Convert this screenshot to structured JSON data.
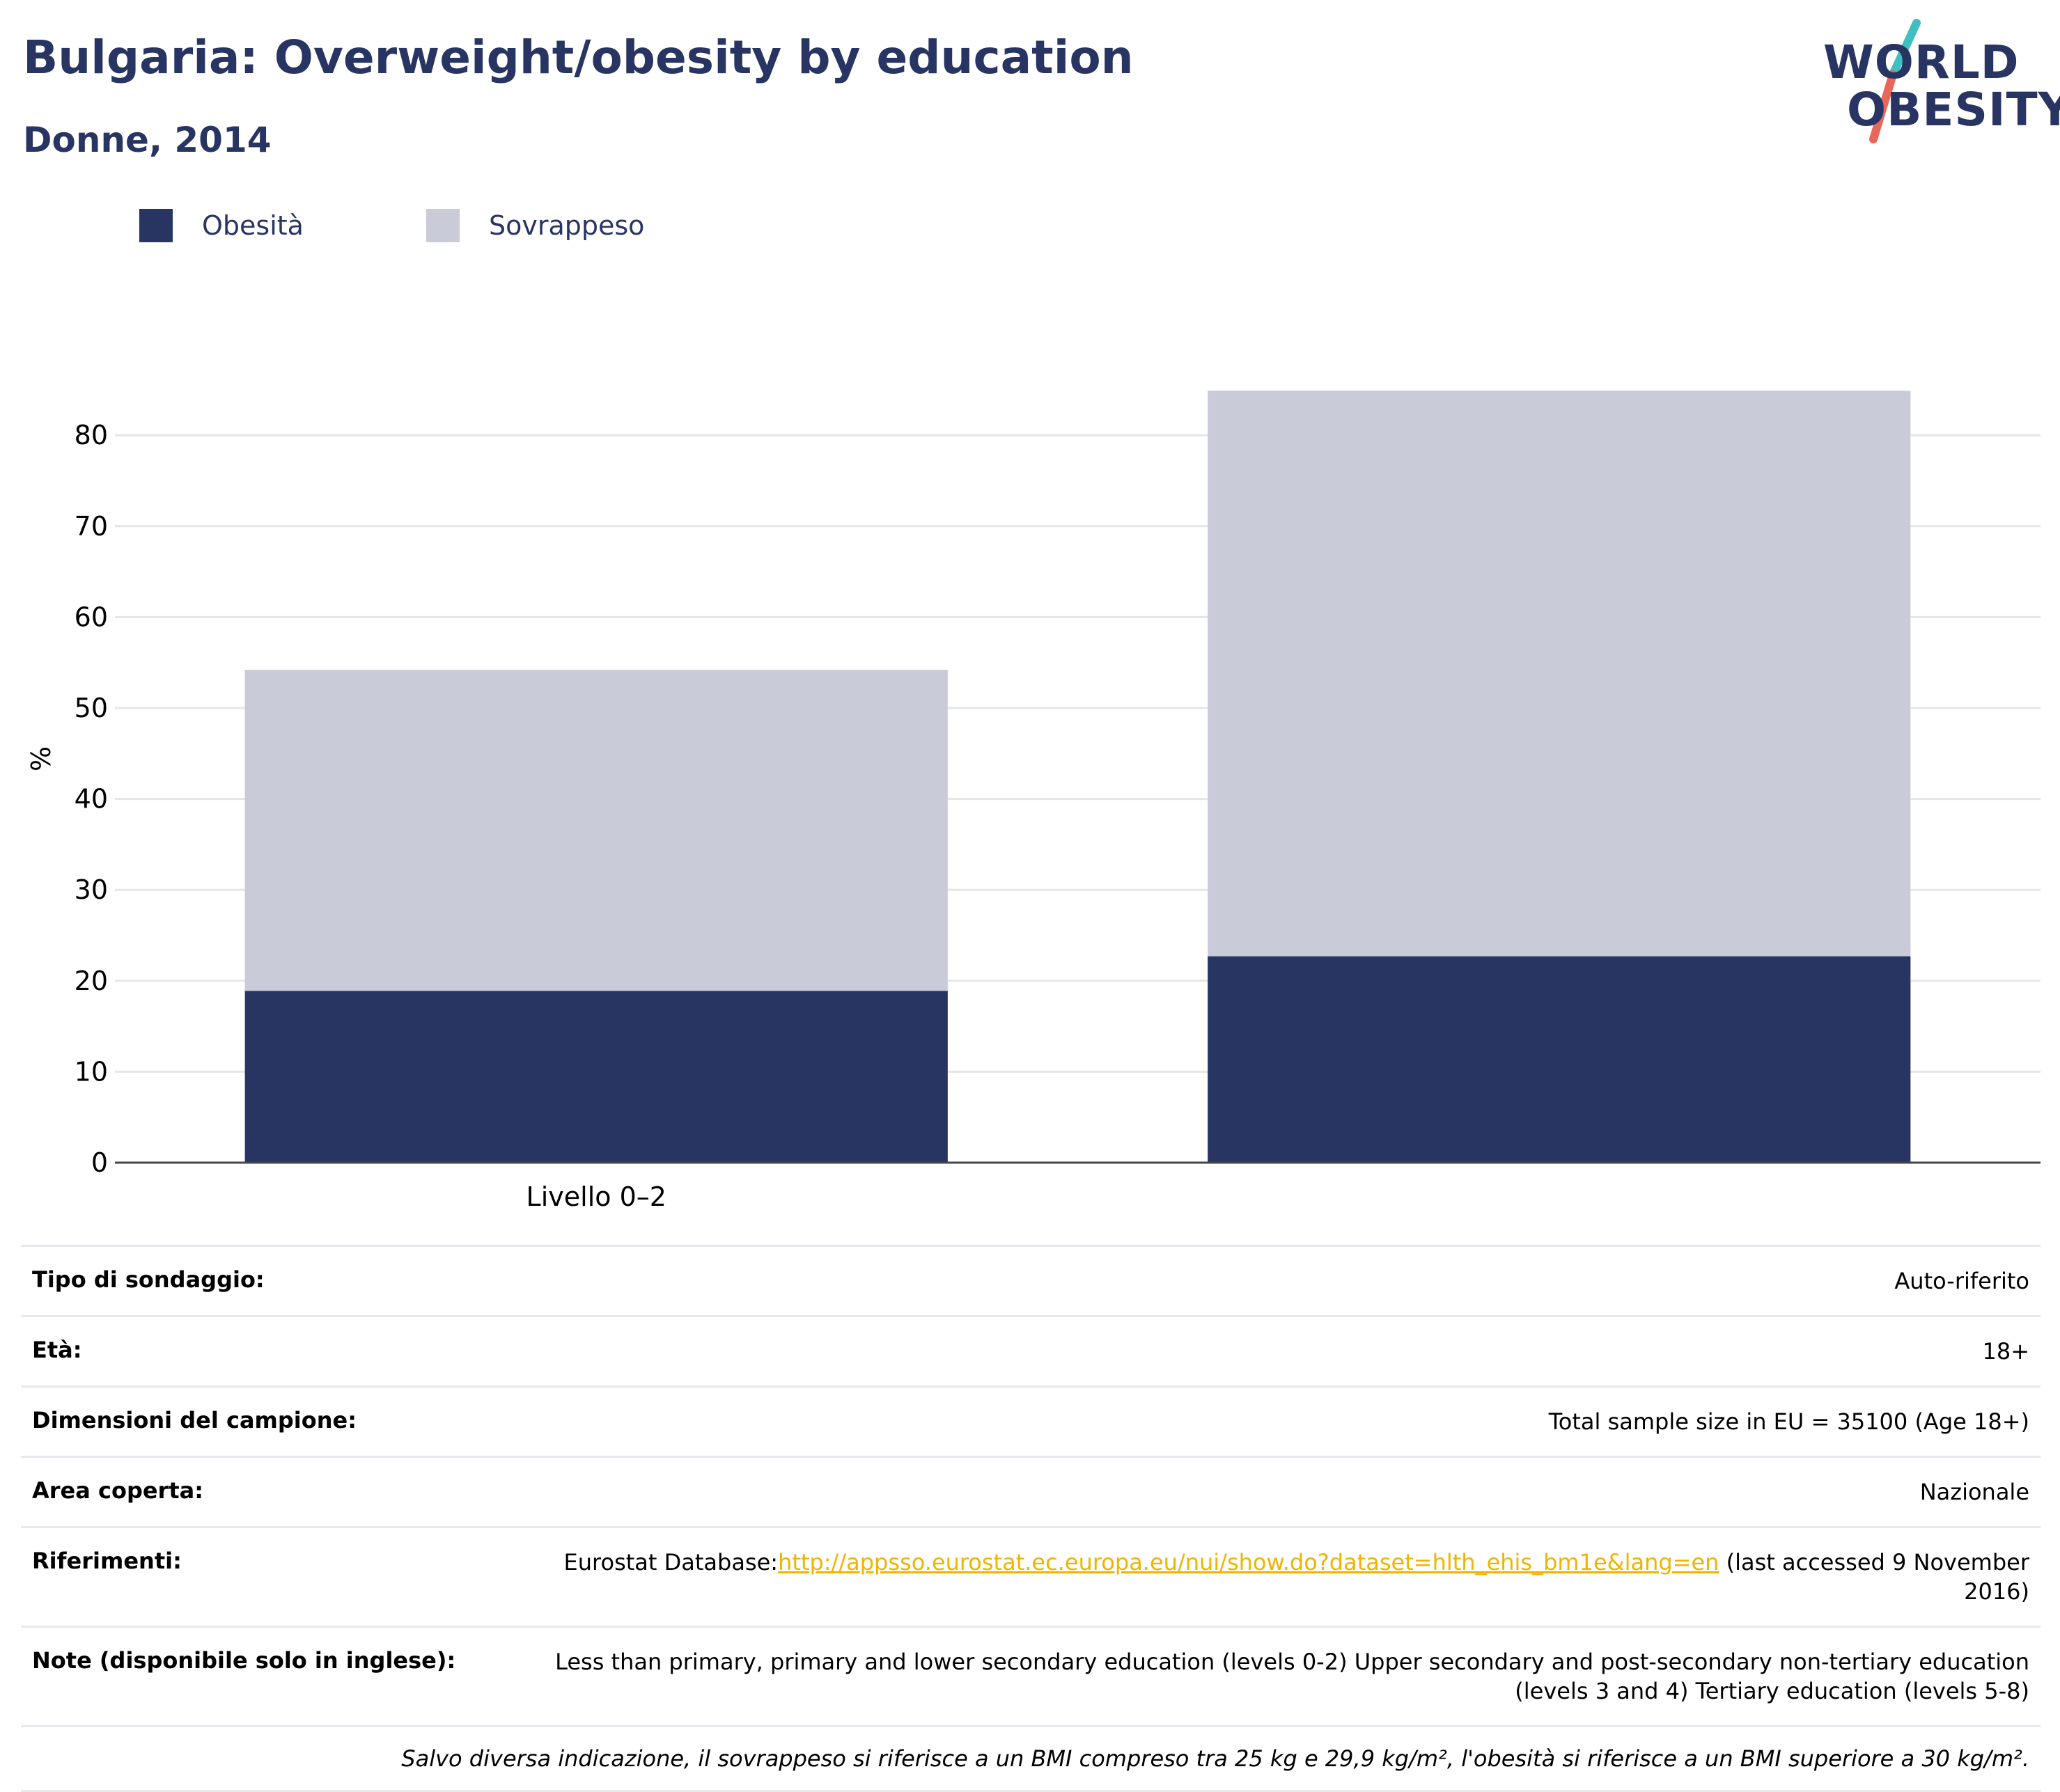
{
  "header": {
    "title": "Bulgaria: Overweight/obesity by education",
    "subtitle": "Donne, 2014"
  },
  "logo": {
    "line1": "W RLD",
    "line2": "OBESITY",
    "line1_text": "WORLD",
    "accent_colors": [
      "#3fbfbf",
      "#e8675a"
    ]
  },
  "legend": {
    "items": [
      {
        "label": "Obesità",
        "color": "#283563"
      },
      {
        "label": "Sovrappeso",
        "color": "#c9ccd8"
      }
    ]
  },
  "chart_data": {
    "type": "bar",
    "stacked": true,
    "categories": [
      "Livello 0–2",
      ""
    ],
    "series": [
      {
        "name": "Obesità",
        "color": "#283563",
        "values": [
          18.9,
          22.7
        ]
      },
      {
        "name": "Sovrappeso",
        "color": "#c9ccd8",
        "values": [
          35.3,
          62.2
        ]
      }
    ],
    "ylabel": "%",
    "ylim": [
      0,
      90
    ],
    "yticks": [
      0,
      10,
      20,
      30,
      40,
      50,
      60,
      70,
      80
    ],
    "grid": true
  },
  "info": {
    "rows": [
      {
        "key": "Tipo di sondaggio:",
        "value": "Auto-riferito"
      },
      {
        "key": "Età:",
        "value": "18+"
      },
      {
        "key": "Dimensioni del campione:",
        "value": "Total sample size in EU = 35100 (Age 18+)"
      },
      {
        "key": "Area coperta:",
        "value": "Nazionale"
      }
    ],
    "references": {
      "key": "Riferimenti:",
      "prefix": "Eurostat Database:",
      "link": "http://appsso.eurostat.ec.europa.eu/nui/show.do?dataset=hlth_ehis_bm1e&lang=en",
      "suffix": " (last accessed 9 November 2016)"
    },
    "notes": {
      "key": "Note (disponibile solo in inglese):",
      "value": "Less than primary, primary and lower secondary education (levels 0-2) Upper secondary and post-secondary non-tertiary education (levels 3 and 4) Tertiary education (levels 5-8)"
    },
    "footnote": "Salvo diversa indicazione, il sovrappeso si riferisce a un BMI compreso tra 25 kg e 29,9 kg/m², l'obesità si riferisce a un BMI superiore a 30 kg/m²."
  }
}
